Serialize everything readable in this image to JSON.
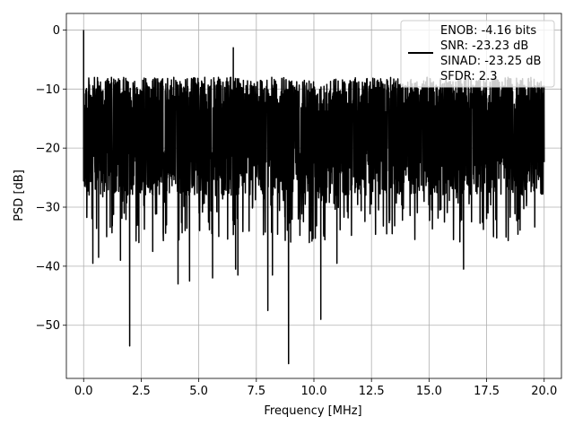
{
  "chart_data": {
    "type": "line",
    "title": "",
    "xlabel": "Frequency [MHz]",
    "ylabel": "PSD [dB]",
    "xlim": [
      -0.75,
      20.75
    ],
    "ylim": [
      -59,
      2.8
    ],
    "x_ticks": [
      0.0,
      2.5,
      5.0,
      7.5,
      10.0,
      12.5,
      15.0,
      17.5,
      20.0
    ],
    "x_tick_labels": [
      "0.0",
      "2.5",
      "5.0",
      "7.5",
      "10.0",
      "12.5",
      "15.0",
      "17.5",
      "20.0"
    ],
    "y_ticks": [
      0,
      -10,
      -20,
      -30,
      -40,
      -50
    ],
    "y_tick_labels": [
      "0",
      "−10",
      "−20",
      "−30",
      "−40",
      "−50"
    ],
    "grid": true,
    "legend_placement": "top-right",
    "series": [
      {
        "name": "ENOB: -4.16 bits\nSNR: -23.23 dB\nSINAD: -23.25 dB\nSFDR: 2.3",
        "color": "#000000",
        "approximate_band_db": [
          -28,
          -8
        ],
        "notable_points": [
          {
            "x": 0.0,
            "y": 0.0
          },
          {
            "x": 0.1,
            "y": -23.0
          },
          {
            "x": 0.4,
            "y": -39.5
          },
          {
            "x": 0.65,
            "y": -38.5
          },
          {
            "x": 1.0,
            "y": -35.0
          },
          {
            "x": 1.6,
            "y": -39.0
          },
          {
            "x": 2.0,
            "y": -53.5
          },
          {
            "x": 2.4,
            "y": -36.0
          },
          {
            "x": 3.0,
            "y": -37.5
          },
          {
            "x": 4.1,
            "y": -43.0
          },
          {
            "x": 4.6,
            "y": -42.5
          },
          {
            "x": 5.6,
            "y": -42.0
          },
          {
            "x": 6.5,
            "y": -3.0
          },
          {
            "x": 6.6,
            "y": -40.5
          },
          {
            "x": 6.7,
            "y": -41.5
          },
          {
            "x": 8.0,
            "y": -47.5
          },
          {
            "x": 8.2,
            "y": -41.5
          },
          {
            "x": 8.9,
            "y": -56.5
          },
          {
            "x": 9.8,
            "y": -36.0
          },
          {
            "x": 10.3,
            "y": -49.0
          },
          {
            "x": 11.0,
            "y": -39.5
          },
          {
            "x": 13.4,
            "y": -34.5
          },
          {
            "x": 16.5,
            "y": -40.5
          },
          {
            "x": 17.8,
            "y": -35.0
          },
          {
            "x": 18.9,
            "y": -32.0
          }
        ]
      }
    ]
  }
}
